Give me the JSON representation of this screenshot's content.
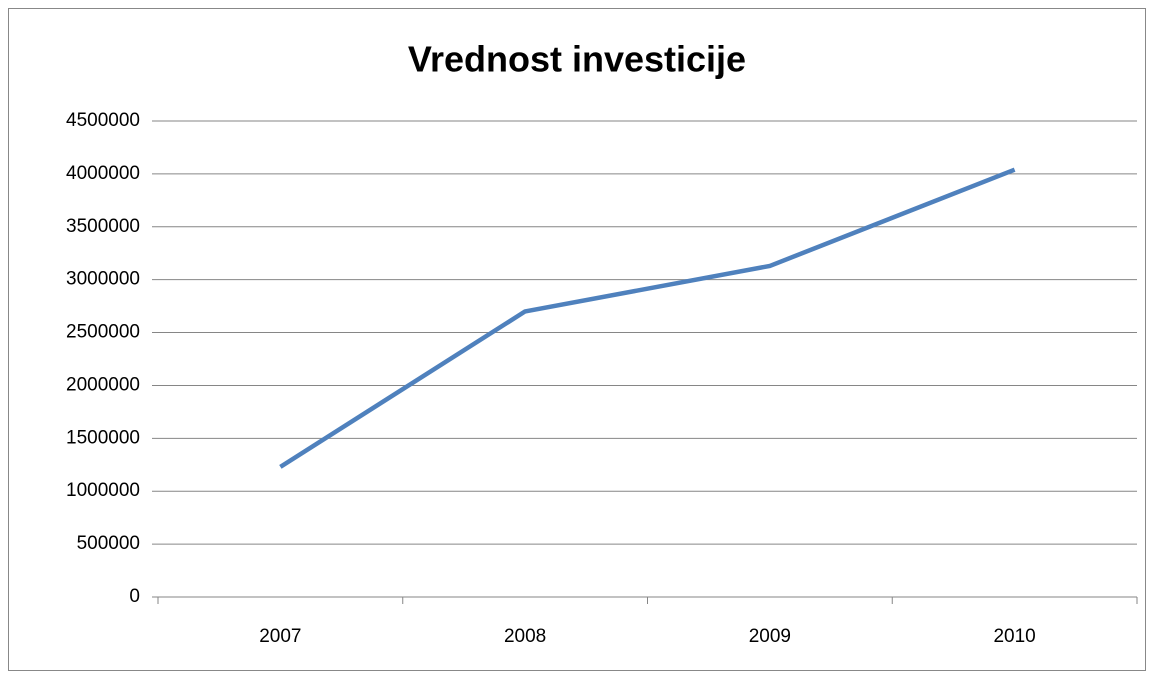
{
  "chart_data": {
    "type": "line",
    "title": "Vrednost investicije",
    "categories": [
      "2007",
      "2008",
      "2009",
      "2010"
    ],
    "series": [
      {
        "name": "Vrednost investicije",
        "color": "#4f81bd",
        "values": [
          1230000,
          2700000,
          3130000,
          4040000
        ]
      }
    ],
    "ylim": [
      0,
      4500000
    ],
    "yticks": [
      0,
      500000,
      1000000,
      1500000,
      2000000,
      2500000,
      3000000,
      3500000,
      4000000,
      4500000
    ],
    "grid": true
  }
}
